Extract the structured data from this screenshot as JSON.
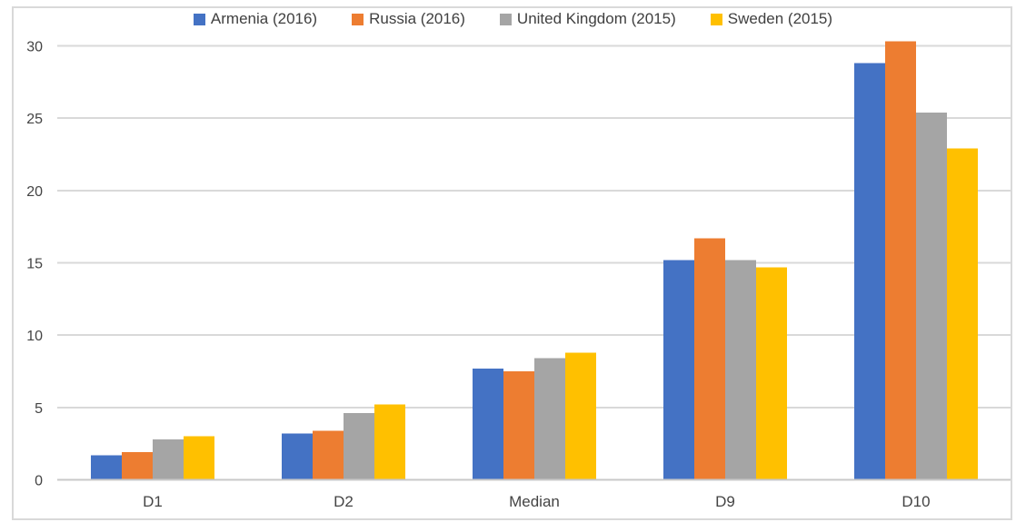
{
  "chart_data": {
    "type": "bar",
    "title": "",
    "xlabel": "",
    "ylabel": "",
    "categories": [
      "D1",
      "D2",
      "Median",
      "D9",
      "D10"
    ],
    "series": [
      {
        "name": "Armenia (2016)",
        "color": "#4472C4",
        "values": [
          1.7,
          3.2,
          7.7,
          15.2,
          28.8
        ]
      },
      {
        "name": "Russia (2016)",
        "color": "#ED7D31",
        "values": [
          1.9,
          3.4,
          7.5,
          16.7,
          30.3
        ]
      },
      {
        "name": "United Kingdom (2015)",
        "color": "#A5A5A5",
        "values": [
          2.8,
          4.6,
          8.4,
          15.2,
          25.4
        ]
      },
      {
        "name": "Sweden (2015)",
        "color": "#FFC000",
        "values": [
          3.0,
          5.2,
          8.8,
          14.7,
          22.9
        ]
      }
    ],
    "yticks": [
      0,
      5,
      10,
      15,
      20,
      25,
      30
    ],
    "ylim": [
      0,
      30
    ],
    "grid": true,
    "legend_position": "top"
  },
  "colors": {
    "gridline": "#D9D9D9",
    "axis_line": "#C8C8C8",
    "tick_text": "#444444",
    "legend_text": "#404040",
    "chart_border": "#D9D9D9",
    "background": "#FFFFFF"
  }
}
